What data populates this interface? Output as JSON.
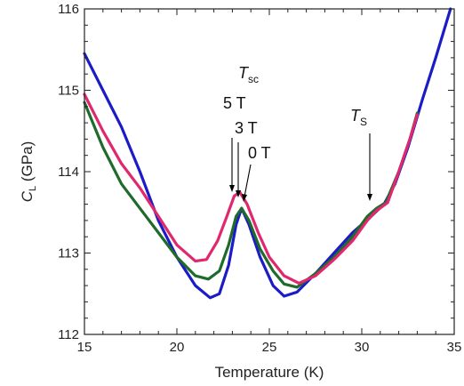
{
  "chart_data": {
    "type": "line",
    "title": "",
    "xlabel": "Temperature (K)",
    "ylabel": {
      "main": "C",
      "sub": "L",
      "unit": " (GPa)"
    },
    "xlim": [
      15,
      35
    ],
    "ylim": [
      112,
      116
    ],
    "x_ticks": [
      "15",
      "20",
      "25",
      "30",
      "35"
    ],
    "y_ticks": [
      "112",
      "113",
      "114",
      "115",
      "116"
    ],
    "grid": false,
    "series": [
      {
        "color": "#1c1cc6",
        "points": [
          [
            15,
            115.45
          ],
          [
            16,
            115.0
          ],
          [
            17,
            114.55
          ],
          [
            18,
            114.0
          ],
          [
            19,
            113.4
          ],
          [
            20,
            112.95
          ],
          [
            21,
            112.6
          ],
          [
            21.8,
            112.45
          ],
          [
            22.3,
            112.5
          ],
          [
            22.8,
            112.85
          ],
          [
            23.2,
            113.35
          ],
          [
            23.5,
            113.55
          ],
          [
            23.9,
            113.35
          ],
          [
            24.5,
            112.95
          ],
          [
            25.2,
            112.6
          ],
          [
            25.8,
            112.47
          ],
          [
            26.5,
            112.52
          ],
          [
            27.5,
            112.75
          ],
          [
            28.5,
            113.0
          ],
          [
            29.5,
            113.25
          ],
          [
            30.5,
            113.45
          ],
          [
            31.2,
            113.6
          ],
          [
            31.8,
            113.85
          ],
          [
            32.5,
            114.3
          ],
          [
            33.3,
            114.9
          ],
          [
            34.0,
            115.4
          ],
          [
            34.8,
            116.0
          ]
        ]
      },
      {
        "color": "#1f6b2b",
        "points": [
          [
            15,
            114.85
          ],
          [
            16,
            114.3
          ],
          [
            17,
            113.85
          ],
          [
            18,
            113.55
          ],
          [
            19,
            113.25
          ],
          [
            20,
            112.95
          ],
          [
            21,
            112.72
          ],
          [
            21.7,
            112.68
          ],
          [
            22.3,
            112.78
          ],
          [
            22.8,
            113.1
          ],
          [
            23.2,
            113.45
          ],
          [
            23.5,
            113.55
          ],
          [
            23.9,
            113.4
          ],
          [
            24.5,
            113.05
          ],
          [
            25.2,
            112.78
          ],
          [
            25.8,
            112.62
          ],
          [
            26.5,
            112.58
          ],
          [
            27.5,
            112.75
          ],
          [
            28.5,
            112.95
          ],
          [
            29.5,
            113.2
          ],
          [
            30.3,
            113.45
          ],
          [
            30.8,
            113.55
          ],
          [
            31.3,
            113.62
          ],
          [
            32.0,
            114.0
          ],
          [
            32.6,
            114.4
          ],
          [
            33.0,
            114.72
          ]
        ]
      },
      {
        "color": "#e0286e",
        "points": [
          [
            15,
            114.95
          ],
          [
            16,
            114.5
          ],
          [
            17,
            114.1
          ],
          [
            18,
            113.8
          ],
          [
            19,
            113.45
          ],
          [
            20,
            113.1
          ],
          [
            21,
            112.9
          ],
          [
            21.6,
            112.92
          ],
          [
            22.2,
            113.15
          ],
          [
            22.7,
            113.45
          ],
          [
            23.1,
            113.7
          ],
          [
            23.4,
            113.75
          ],
          [
            23.8,
            113.6
          ],
          [
            24.4,
            113.25
          ],
          [
            25.0,
            112.95
          ],
          [
            25.8,
            112.72
          ],
          [
            26.6,
            112.63
          ],
          [
            27.5,
            112.72
          ],
          [
            28.5,
            112.92
          ],
          [
            29.5,
            113.15
          ],
          [
            30.3,
            113.4
          ],
          [
            30.8,
            113.52
          ],
          [
            31.4,
            113.62
          ],
          [
            32.0,
            114.0
          ],
          [
            32.6,
            114.4
          ],
          [
            33.0,
            114.7
          ]
        ]
      }
    ],
    "annotations": {
      "tsc": {
        "main": "T",
        "sub": "sc"
      },
      "field_5T": "5 T",
      "field_3T": "3 T",
      "field_0T": "0 T",
      "ts": {
        "main": "T",
        "sub": "S"
      }
    }
  }
}
